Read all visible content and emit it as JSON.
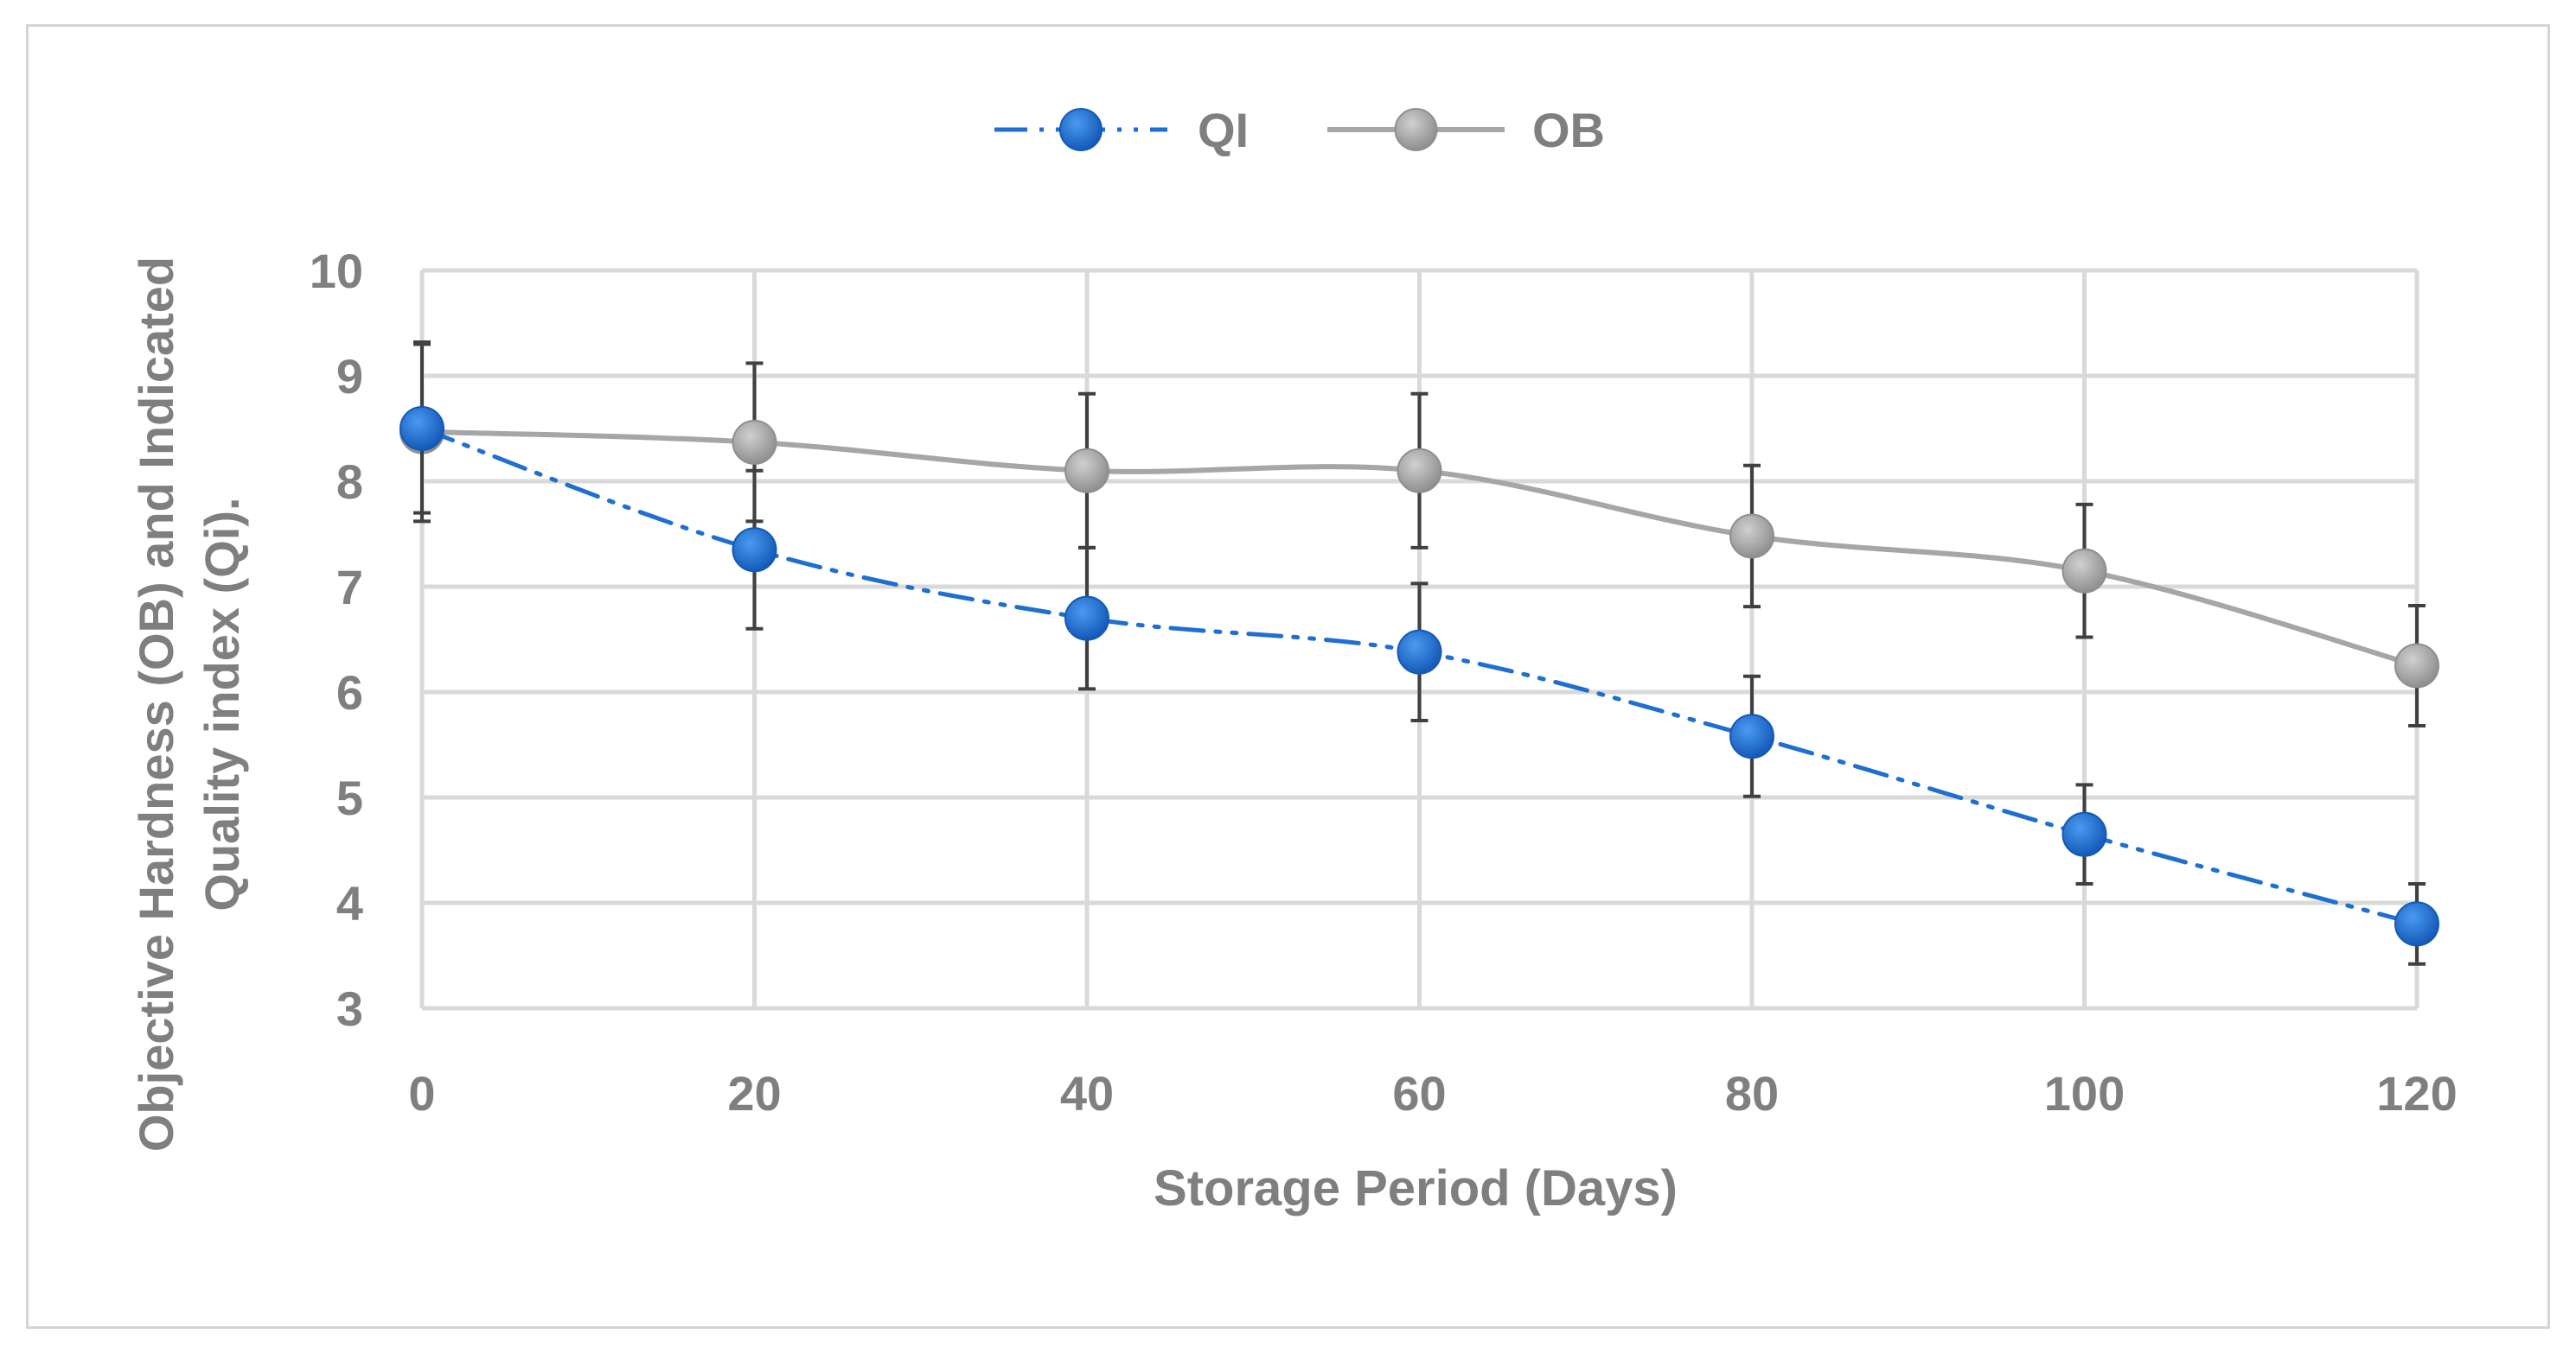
{
  "chart_data": {
    "type": "line",
    "title": "",
    "xlabel": "Storage Period (Days)",
    "ylabel_line1": "Objective Hardness (OB) and Indicated",
    "ylabel_line2": "Quality index (Qi).",
    "x": [
      0,
      20,
      40,
      60,
      80,
      100,
      120
    ],
    "x_tick_labels": [
      "0",
      "20",
      "40",
      "60",
      "80",
      "100",
      "120"
    ],
    "y_tick_labels": [
      "3",
      "4",
      "5",
      "6",
      "7",
      "8",
      "9",
      "10"
    ],
    "ylim": [
      3,
      10
    ],
    "xlim": [
      0,
      120
    ],
    "grid": true,
    "legend_position": "top-center",
    "series": [
      {
        "name": "QI",
        "color": "#1f6fd1",
        "line_style": "dash-dot-dot",
        "values": [
          8.5,
          7.35,
          6.7,
          6.38,
          5.58,
          4.65,
          3.8
        ],
        "error": [
          0.8,
          0.75,
          0.67,
          0.65,
          0.57,
          0.47,
          0.38
        ]
      },
      {
        "name": "OB",
        "color": "#a6a6a6",
        "line_style": "solid",
        "values": [
          8.47,
          8.37,
          8.1,
          8.1,
          7.48,
          7.15,
          6.25
        ],
        "error": [
          0.85,
          0.75,
          0.73,
          0.73,
          0.67,
          0.63,
          0.57
        ]
      }
    ]
  }
}
